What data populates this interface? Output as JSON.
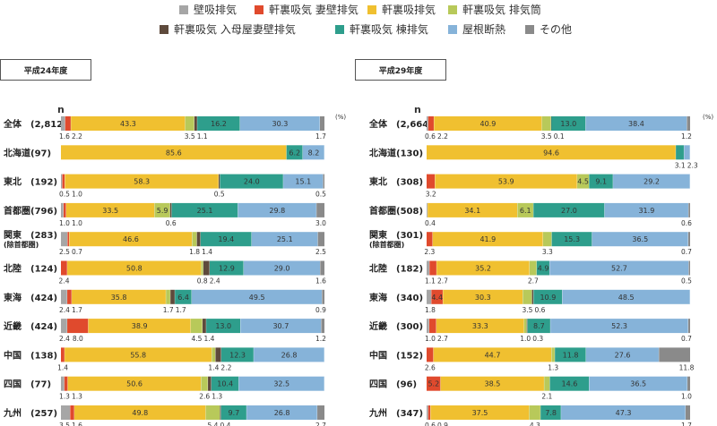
{
  "legend": [
    {
      "name": "壁吸排気",
      "color": "#a6a6a6"
    },
    {
      "name": "軒裏吸気 妻壁排気",
      "color": "#e04a2d"
    },
    {
      "name": "軒裏吸排気",
      "color": "#f0c030"
    },
    {
      "name": "軒裏吸気 排気筒",
      "color": "#b8c95a"
    },
    {
      "name": "軒裏吸気 入母屋妻壁排気",
      "color": "#5e4a3c"
    },
    {
      "name": "軒裏吸気 棟排気",
      "color": "#2e9e8c"
    },
    {
      "name": "屋根断熱",
      "color": "#86b3d9"
    },
    {
      "name": "その他",
      "color": "#8a8a8a"
    }
  ],
  "unit_label": "(%)",
  "n_label": "n",
  "chart_data": [
    {
      "type": "stacked-bar-horizontal",
      "title": "平成24年度",
      "series": [
        "壁吸排気",
        "軒裏吸気 妻壁排気",
        "軒裏吸排気",
        "軒裏吸気 排気筒",
        "軒裏吸気 入母屋妻壁排気",
        "軒裏吸気 棟排気",
        "屋根断熱",
        "その他"
      ],
      "rows": [
        {
          "label": "全体",
          "label2": "",
          "n": "(2,812)",
          "values": [
            1.6,
            2.2,
            43.3,
            3.5,
            1.1,
            16.2,
            30.3,
            1.7
          ],
          "inside": [
            "43.3",
            "16.2",
            "30.3"
          ],
          "below": [
            [
              "1.6",
              0
            ],
            [
              "2.2",
              1
            ],
            [
              "3.5",
              3
            ],
            [
              "1.1",
              4
            ],
            [
              "1.7",
              7
            ]
          ]
        },
        {
          "label": "北海道",
          "label2": "",
          "n": "(97)",
          "values": [
            0,
            0,
            85.6,
            0,
            0,
            6.2,
            8.2,
            0
          ],
          "inside": [
            "85.6",
            "6.2",
            "8.2"
          ],
          "below": []
        },
        {
          "label": "東北",
          "label2": "",
          "n": "(192)",
          "values": [
            0.5,
            1.0,
            58.3,
            0,
            0.5,
            24.0,
            15.1,
            0.5
          ],
          "inside": [
            "58.3",
            "24.0",
            "15.1"
          ],
          "below": [
            [
              "0.5",
              0
            ],
            [
              "1.0",
              1
            ],
            [
              "0.5",
              4
            ],
            [
              "0.5",
              7
            ]
          ]
        },
        {
          "label": "首都圏",
          "label2": "",
          "n": "(796)",
          "values": [
            1.0,
            1.0,
            33.5,
            5.9,
            0.6,
            25.1,
            29.8,
            3.0
          ],
          "inside": [
            "33.5",
            "5.9",
            "25.1",
            "29.8"
          ],
          "below": [
            [
              "1.0",
              0
            ],
            [
              "1.0",
              1
            ],
            [
              "0.6",
              4
            ],
            [
              "3.0",
              7
            ]
          ]
        },
        {
          "label": "関東",
          "label2": "(除首都圏)",
          "n": "(283)",
          "values": [
            2.5,
            0.7,
            46.6,
            1.8,
            1.4,
            19.4,
            25.1,
            2.5
          ],
          "inside": [
            "46.6",
            "19.4",
            "25.1"
          ],
          "below": [
            [
              "2.5",
              0
            ],
            [
              "0.7",
              1
            ],
            [
              "1.8",
              3
            ],
            [
              "1.4",
              4
            ],
            [
              "2.5",
              7
            ]
          ]
        },
        {
          "label": "北陸",
          "label2": "",
          "n": "(124)",
          "values": [
            0,
            2.4,
            50.8,
            0.8,
            2.4,
            12.9,
            29.0,
            1.6
          ],
          "inside": [
            "50.8",
            "12.9",
            "29.0"
          ],
          "below": [
            [
              "2.4",
              1
            ],
            [
              "0.8",
              3
            ],
            [
              "2.4",
              4
            ],
            [
              "1.6",
              7
            ]
          ]
        },
        {
          "label": "東海",
          "label2": "",
          "n": "(424)",
          "values": [
            2.4,
            1.7,
            35.8,
            1.7,
            1.7,
            6.4,
            49.5,
            0.9
          ],
          "inside": [
            "35.8",
            "6.4",
            "49.5"
          ],
          "below": [
            [
              "2.4",
              0
            ],
            [
              "1.7",
              1
            ],
            [
              "1.7",
              3
            ],
            [
              "1.7",
              4
            ],
            [
              "0.9",
              7
            ]
          ]
        },
        {
          "label": "近畿",
          "label2": "",
          "n": "(424)",
          "values": [
            2.4,
            8.0,
            38.9,
            4.5,
            1.4,
            13.0,
            30.7,
            1.2
          ],
          "inside": [
            "38.9",
            "13.0",
            "30.7"
          ],
          "below": [
            [
              "2.4",
              0
            ],
            [
              "8.0",
              1
            ],
            [
              "4.5",
              3
            ],
            [
              "1.4",
              4
            ],
            [
              "1.2",
              7
            ]
          ]
        },
        {
          "label": "中国",
          "label2": "",
          "n": "(138)",
          "values": [
            0,
            1.4,
            55.8,
            1.4,
            2.2,
            12.3,
            26.8,
            0
          ],
          "inside": [
            "55.8",
            "12.3",
            "26.8"
          ],
          "below": [
            [
              "1.4",
              1
            ],
            [
              "1.4",
              3
            ],
            [
              "2.2",
              4
            ]
          ]
        },
        {
          "label": "四国",
          "label2": "",
          "n": "(77)",
          "values": [
            1.3,
            1.3,
            50.6,
            2.6,
            1.3,
            10.4,
            32.5,
            0
          ],
          "inside": [
            "50.6",
            "10.4",
            "32.5"
          ],
          "below": [
            [
              "1.3",
              0
            ],
            [
              "1.3",
              1
            ],
            [
              "2.6",
              3
            ],
            [
              "1.3",
              4
            ]
          ]
        },
        {
          "label": "九州",
          "label2": "",
          "n": "(257)",
          "values": [
            3.5,
            1.6,
            49.8,
            5.4,
            0.4,
            9.7,
            26.8,
            2.7
          ],
          "inside": [
            "49.8",
            "9.7",
            "26.8"
          ],
          "below": [
            [
              "3.5",
              0
            ],
            [
              "1.6",
              1
            ],
            [
              "5.4",
              3
            ],
            [
              "0.4",
              4
            ],
            [
              "2.7",
              7
            ]
          ]
        }
      ]
    },
    {
      "type": "stacked-bar-horizontal",
      "title": "平成29年度",
      "series": [
        "壁吸排気",
        "軒裏吸気 妻壁排気",
        "軒裏吸排気",
        "軒裏吸気 排気筒",
        "軒裏吸気 入母屋妻壁排気",
        "軒裏吸気 棟排気",
        "屋根断熱",
        "その他"
      ],
      "rows": [
        {
          "label": "全体",
          "label2": "",
          "n": "(2,664)",
          "values": [
            0.6,
            2.2,
            40.9,
            3.5,
            0.1,
            13.0,
            38.4,
            1.2
          ],
          "inside": [
            "40.9",
            "13.0",
            "38.4"
          ],
          "below": [
            [
              "0.6",
              0
            ],
            [
              "2.2",
              1
            ],
            [
              "3.5",
              3
            ],
            [
              "0.1",
              4
            ],
            [
              "1.2",
              7
            ]
          ]
        },
        {
          "label": "北海道",
          "label2": "",
          "n": "(130)",
          "values": [
            0,
            0,
            94.6,
            0,
            0,
            3.1,
            2.3,
            0
          ],
          "inside": [
            "94.6"
          ],
          "below": [
            [
              "3.1",
              5
            ],
            [
              "2.3",
              6
            ]
          ]
        },
        {
          "label": "東北",
          "label2": "",
          "n": "(308)",
          "values": [
            0,
            3.2,
            53.9,
            4.5,
            0,
            9.1,
            29.2,
            0
          ],
          "inside": [
            "53.9",
            "4.5",
            "9.1",
            "29.2"
          ],
          "below": [
            [
              "3.2",
              1
            ]
          ]
        },
        {
          "label": "首都圏",
          "label2": "",
          "n": "(508)",
          "values": [
            0.4,
            0,
            34.1,
            6.1,
            0,
            27.0,
            31.9,
            0.6
          ],
          "inside": [
            "34.1",
            "6.1",
            "27.0",
            "31.9"
          ],
          "below": [
            [
              "0.4",
              0
            ],
            [
              "0.6",
              7
            ]
          ]
        },
        {
          "label": "関東",
          "label2": "(除首都圏)",
          "n": "(301)",
          "values": [
            0,
            2.3,
            41.9,
            3.3,
            0,
            15.3,
            36.5,
            0.7
          ],
          "inside": [
            "41.9",
            "15.3",
            "36.5"
          ],
          "below": [
            [
              "2.3",
              1
            ],
            [
              "3.3",
              3
            ],
            [
              "0.7",
              7
            ]
          ]
        },
        {
          "label": "北陸",
          "label2": "",
          "n": "(182)",
          "values": [
            1.1,
            2.7,
            35.2,
            2.7,
            0,
            4.9,
            52.7,
            0.5
          ],
          "inside": [
            "35.2",
            "4.9",
            "52.7"
          ],
          "below": [
            [
              "1.1",
              0
            ],
            [
              "2.7",
              1
            ],
            [
              "2.7",
              3
            ],
            [
              "0.5",
              7
            ]
          ]
        },
        {
          "label": "東海",
          "label2": "",
          "n": "(340)",
          "values": [
            1.8,
            4.4,
            30.3,
            3.5,
            0.6,
            10.9,
            48.5,
            0
          ],
          "inside": [
            "4.4",
            "30.3",
            "10.9",
            "48.5"
          ],
          "below": [
            [
              "1.8",
              0
            ],
            [
              "3.5",
              3
            ],
            [
              "0.6",
              4
            ]
          ]
        },
        {
          "label": "近畿",
          "label2": "",
          "n": "(300)",
          "values": [
            1.0,
            2.7,
            33.3,
            1.0,
            0.3,
            8.7,
            52.3,
            0.7
          ],
          "inside": [
            "33.3",
            "8.7",
            "52.3"
          ],
          "below": [
            [
              "1.0",
              0
            ],
            [
              "2.7",
              1
            ],
            [
              "1.0",
              3
            ],
            [
              "0.3",
              4
            ],
            [
              "0.7",
              7
            ]
          ]
        },
        {
          "label": "中国",
          "label2": "",
          "n": "(152)",
          "values": [
            0,
            2.6,
            44.7,
            1.3,
            0,
            11.8,
            27.6,
            11.8
          ],
          "inside": [
            "44.7",
            "11.8",
            "27.6"
          ],
          "below": [
            [
              "2.6",
              1
            ],
            [
              "1.3",
              3
            ],
            [
              "11.8",
              7
            ]
          ]
        },
        {
          "label": "四国",
          "label2": "",
          "n": "(96)",
          "values": [
            0,
            5.2,
            38.5,
            2.1,
            0,
            14.6,
            36.5,
            1.0
          ],
          "inside": [
            "5.2",
            "38.5",
            "14.6",
            "36.5"
          ],
          "below": [
            [
              "2.1",
              3
            ],
            [
              "1.0",
              7
            ]
          ]
        },
        {
          "label": "九州",
          "label2": "",
          "n": "(347)",
          "values": [
            0.6,
            0.9,
            37.5,
            4.3,
            0,
            7.8,
            47.3,
            1.7
          ],
          "inside": [
            "37.5",
            "7.8",
            "47.3"
          ],
          "below": [
            [
              "0.6",
              0
            ],
            [
              "0.9",
              1
            ],
            [
              "4.3",
              3
            ],
            [
              "1.7",
              7
            ]
          ]
        }
      ]
    }
  ]
}
